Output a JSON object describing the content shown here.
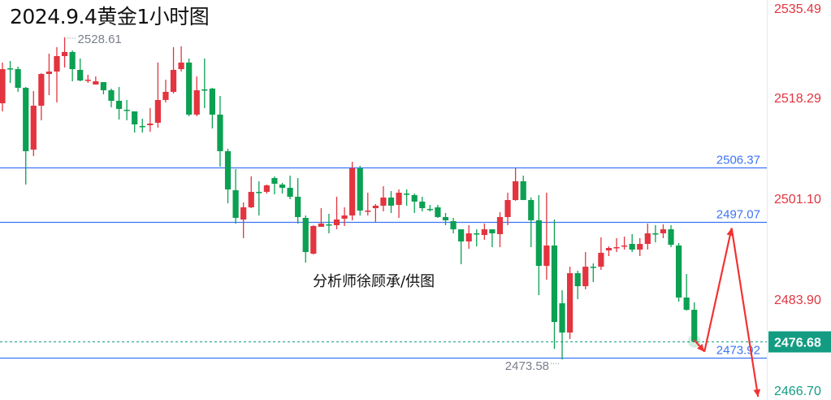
{
  "title": "2024.9.4黄金1小时图",
  "watermark_note": "分析师徐顾承/供图",
  "colors": {
    "up": "#e3343f",
    "down": "#0ba052",
    "level_line": "#3d74f5",
    "current_price": "#139c82",
    "axis_up_label": "#e3343f",
    "axis_down_label": "#139c82",
    "projection": "#f23232",
    "extreme_label": "#7a7f8c"
  },
  "chart_data": {
    "type": "candlestick",
    "title": "2024.9.4黄金1小时图",
    "ylim": [
      2466.7,
      2535.49
    ],
    "grid": false,
    "y_ticks": [
      {
        "label": "2535.49",
        "value": 2535.49
      },
      {
        "label": "2518.29",
        "value": 2518.29
      },
      {
        "label": "2501.10",
        "value": 2501.1
      },
      {
        "label": "2483.90",
        "value": 2483.9
      },
      {
        "label": "2466.70",
        "value": 2466.7
      }
    ],
    "candles_ohlc": [
      [
        2517.34,
        2524.29,
        2515.95,
        2523.17
      ],
      [
        2523.31,
        2524.56,
        2520.81,
        2523.31
      ],
      [
        2523.17,
        2523.59,
        2519.29,
        2519.98
      ],
      [
        2519.98,
        2520.12,
        2503.45,
        2509.15
      ],
      [
        2509.42,
        2519.42,
        2508.31,
        2516.92
      ],
      [
        2516.92,
        2522.48,
        2514.42,
        2522.34
      ],
      [
        2522.34,
        2525.81,
        2518.73,
        2522.76
      ],
      [
        2522.76,
        2526.92,
        2517.48,
        2525.4
      ],
      [
        2525.4,
        2528.61,
        2523.45,
        2526.09
      ],
      [
        2526.09,
        2526.37,
        2521.09,
        2523.17
      ],
      [
        2523.04,
        2524.98,
        2521.09,
        2521.23
      ],
      [
        2521.37,
        2522.2,
        2520.81,
        2521.37
      ],
      [
        2520.54,
        2521.92,
        2520.54,
        2521.09
      ],
      [
        2520.95,
        2520.95,
        2518.87,
        2519.56
      ],
      [
        2519.56,
        2519.84,
        2516.65,
        2517.76
      ],
      [
        2517.76,
        2520.12,
        2514.56,
        2516.37
      ],
      [
        2516.23,
        2517.9,
        2514.42,
        2516.23
      ],
      [
        2515.95,
        2515.95,
        2512.34,
        2513.73
      ],
      [
        2513.45,
        2514.7,
        2512.34,
        2513.45
      ],
      [
        2513.59,
        2516.51,
        2512.48,
        2513.87
      ],
      [
        2514.01,
        2524.29,
        2513.17,
        2517.9
      ],
      [
        2517.9,
        2521.37,
        2517.48,
        2519.29
      ],
      [
        2519.29,
        2526.92,
        2519.01,
        2523.04
      ],
      [
        2523.17,
        2527.06,
        2522.76,
        2524.29
      ],
      [
        2524.29,
        2524.98,
        2515.12,
        2515.4
      ],
      [
        2515.4,
        2521.92,
        2515.12,
        2519.56
      ],
      [
        2519.7,
        2524.98,
        2516.51,
        2519.7
      ],
      [
        2519.84,
        2519.98,
        2513.03,
        2515.4
      ],
      [
        2515.4,
        2518.59,
        2506.51,
        2509.15
      ],
      [
        2509.15,
        2509.56,
        2500.26,
        2502.62
      ],
      [
        2502.48,
        2506.09,
        2496.79,
        2497.76
      ],
      [
        2497.48,
        2500.4,
        2494.29,
        2499.56
      ],
      [
        2499.56,
        2504.84,
        2499.42,
        2502.2
      ],
      [
        2502.2,
        2504.01,
        2498.17,
        2502.2
      ],
      [
        2502.2,
        2503.45,
        2501.92,
        2503.31
      ],
      [
        2504.56,
        2504.84,
        2501.79,
        2503.59
      ],
      [
        2503.45,
        2503.73,
        2501.92,
        2502.9
      ],
      [
        2502.9,
        2504.98,
        2500.95,
        2501.37
      ],
      [
        2501.37,
        2504.56,
        2496.79,
        2497.9
      ],
      [
        2497.76,
        2498.17,
        2490.12,
        2491.92
      ],
      [
        2491.65,
        2496.51,
        2491.51,
        2496.37
      ],
      [
        2496.23,
        2499.42,
        2496.23,
        2496.79
      ],
      [
        2496.65,
        2498.45,
        2495.12,
        2496.65
      ],
      [
        2496.51,
        2501.37,
        2495.81,
        2497.48
      ],
      [
        2497.62,
        2499.56,
        2496.37,
        2498.17
      ],
      [
        2498.17,
        2507.34,
        2497.34,
        2506.23
      ],
      [
        2506.23,
        2506.65,
        2498.17,
        2499.01
      ],
      [
        2499.01,
        2502.06,
        2498.17,
        2499.01
      ],
      [
        2499.42,
        2500.12,
        2497.06,
        2499.84
      ],
      [
        2499.84,
        2503.17,
        2498.87,
        2501.23
      ],
      [
        2501.23,
        2502.34,
        2498.59,
        2499.84
      ],
      [
        2499.98,
        2502.62,
        2497.76,
        2502.06
      ],
      [
        2501.92,
        2502.62,
        2499.84,
        2501.92
      ],
      [
        2501.65,
        2501.92,
        2498.59,
        2500.54
      ],
      [
        2500.54,
        2501.37,
        2498.87,
        2499.42
      ],
      [
        2499.29,
        2499.98,
        2498.87,
        2499.29
      ],
      [
        2499.56,
        2499.98,
        2497.76,
        2497.9
      ],
      [
        2497.9,
        2498.59,
        2496.51,
        2497.34
      ],
      [
        2497.2,
        2497.76,
        2495.12,
        2495.81
      ],
      [
        2495.81,
        2495.81,
        2489.84,
        2493.73
      ],
      [
        2493.73,
        2496.51,
        2492.48,
        2495.12
      ],
      [
        2495.12,
        2495.81,
        2492.9,
        2495.12
      ],
      [
        2494.84,
        2496.79,
        2494.01,
        2495.81
      ],
      [
        2495.81,
        2495.81,
        2492.76,
        2495.12
      ],
      [
        2494.98,
        2498.73,
        2492.76,
        2497.9
      ],
      [
        2497.9,
        2502.06,
        2496.51,
        2500.81
      ],
      [
        2500.81,
        2506.23,
        2500.67,
        2504.01
      ],
      [
        2504.01,
        2504.98,
        2500.81,
        2500.81
      ],
      [
        2500.81,
        2501.23,
        2492.76,
        2497.34
      ],
      [
        2497.34,
        2501.65,
        2484.56,
        2489.56
      ],
      [
        2489.56,
        2502.06,
        2487.2,
        2493.04
      ],
      [
        2493.04,
        2497.48,
        2475.4,
        2479.98
      ],
      [
        2483.17,
        2485.4,
        2473.58,
        2478.17
      ],
      [
        2478.17,
        2489.42,
        2477.06,
        2488.31
      ],
      [
        2488.31,
        2488.73,
        2483.87,
        2486.09
      ],
      [
        2486.09,
        2491.92,
        2485.54,
        2489.42
      ],
      [
        2489.42,
        2489.98,
        2486.79,
        2489.42
      ],
      [
        2489.42,
        2494.42,
        2488.87,
        2491.79
      ],
      [
        2492.2,
        2492.9,
        2491.23,
        2492.62
      ],
      [
        2492.76,
        2494.29,
        2491.92,
        2492.76
      ],
      [
        2493.04,
        2494.56,
        2492.34,
        2493.04
      ],
      [
        2493.31,
        2494.98,
        2491.92,
        2492.34
      ],
      [
        2492.34,
        2494.29,
        2491.23,
        2493.31
      ],
      [
        2493.31,
        2496.79,
        2492.34,
        2495.12
      ],
      [
        2495.12,
        2496.51,
        2493.59,
        2495.12
      ],
      [
        2495.12,
        2496.65,
        2494.29,
        2495.81
      ],
      [
        2495.81,
        2496.51,
        2492.76,
        2493.17
      ],
      [
        2493.04,
        2493.45,
        2483.45,
        2484.15
      ],
      [
        2484.15,
        2488.17,
        2481.92,
        2482.06
      ],
      [
        2482.06,
        2483.31,
        2476.68,
        2476.68
      ]
    ],
    "horizontal_levels": [
      {
        "label": "2506.37",
        "value": 2506.37
      },
      {
        "label": "2497.07",
        "value": 2497.07
      },
      {
        "label": "2473.92",
        "value": 2473.92
      }
    ],
    "current_price": {
      "label": "2476.68",
      "value": 2476.68
    },
    "high_marker": {
      "label": "2528.61",
      "value": 2528.61,
      "bar_index": 8
    },
    "low_marker": {
      "label": "2473.58",
      "value": 2473.58,
      "bar_index": 72
    },
    "projection_path": [
      {
        "bar_index": 89,
        "price": 2476.9
      },
      {
        "bar_index": 90.3,
        "price": 2474.9
      },
      {
        "bar_index": 93.8,
        "price": 2496.0
      },
      {
        "bar_index": 97.2,
        "price": 2467.2
      }
    ]
  }
}
